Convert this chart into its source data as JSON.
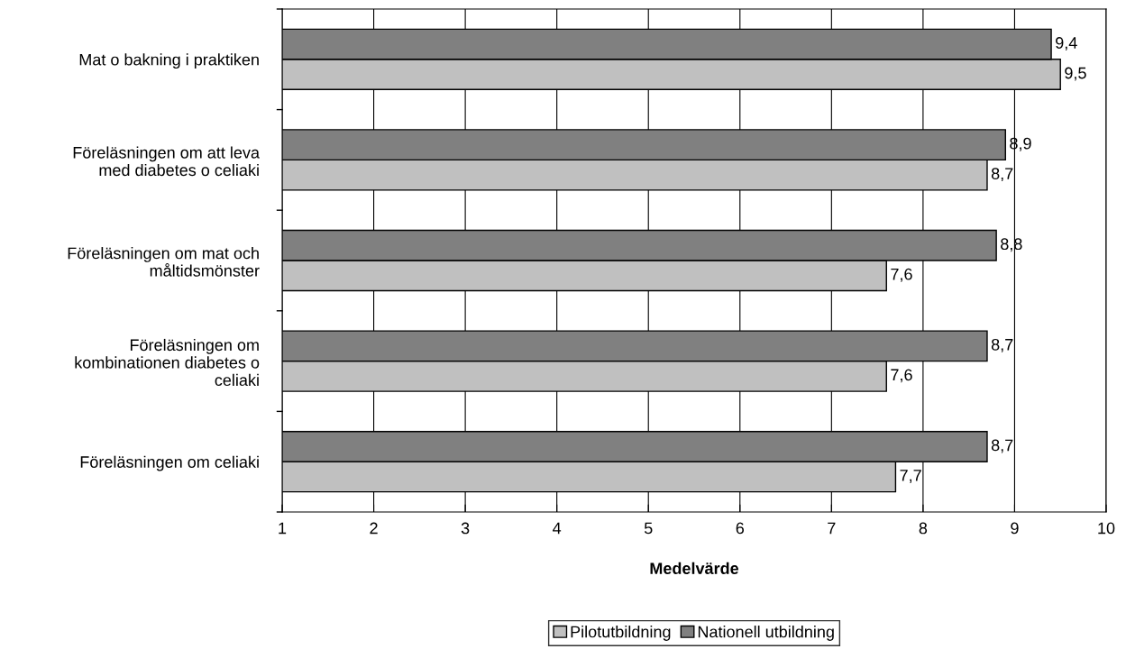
{
  "chart_data": {
    "type": "bar",
    "orientation": "horizontal",
    "xlabel": "Medelvärde",
    "categories": [
      "Mat o bakning i praktiken",
      "Föreläsningen om att leva\nmed diabetes o celiaki",
      "Föreläsningen om mat och\nmåltidsmönster",
      "Föreläsningen om\nkombinationen diabetes o\nceliaki",
      "Föreläsningen om celiaki"
    ],
    "series": [
      {
        "name": "Pilotutbildning",
        "color": "#c0c0c0",
        "values": [
          9.5,
          8.7,
          7.6,
          7.6,
          7.7
        ],
        "value_labels": [
          "9,5",
          "8,7",
          "7,6",
          "7,6",
          "7,7"
        ]
      },
      {
        "name": "Nationell utbildning",
        "color": "#808080",
        "values": [
          9.4,
          8.9,
          8.8,
          8.7,
          8.7
        ],
        "value_labels": [
          "9,4",
          "8,9",
          "8,8",
          "8,7",
          "8,7"
        ]
      }
    ],
    "xlim": [
      1,
      10
    ],
    "xticks": [
      1,
      2,
      3,
      4,
      5,
      6,
      7,
      8,
      9,
      10
    ],
    "grid": "x",
    "legend": "bottom"
  }
}
